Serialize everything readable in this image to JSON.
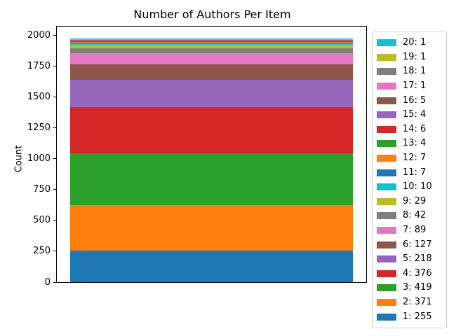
{
  "title": "Number of Authors Per Item",
  "axes": {
    "ylabel": "Count",
    "ytick_labels": [
      "0",
      "250",
      "500",
      "750",
      "1000",
      "1250",
      "1500",
      "1750",
      "2000"
    ]
  },
  "chart_data": {
    "type": "bar",
    "stacked": true,
    "orientation": "vertical",
    "title": "Number of Authors Per Item",
    "xlabel": "",
    "ylabel": "Count",
    "categories": [
      ""
    ],
    "ylim": [
      0,
      2072
    ],
    "yticks": [
      0,
      250,
      500,
      750,
      1000,
      1250,
      1500,
      1750,
      2000
    ],
    "grid": false,
    "legend_position": "outside upper right",
    "series": [
      {
        "name": "1",
        "values": [
          255
        ],
        "color": "#1f77b4"
      },
      {
        "name": "2",
        "values": [
          371
        ],
        "color": "#ff7f0e"
      },
      {
        "name": "3",
        "values": [
          419
        ],
        "color": "#2ca02c"
      },
      {
        "name": "4",
        "values": [
          376
        ],
        "color": "#d62728"
      },
      {
        "name": "5",
        "values": [
          218
        ],
        "color": "#9467bd"
      },
      {
        "name": "6",
        "values": [
          127
        ],
        "color": "#8c564b"
      },
      {
        "name": "7",
        "values": [
          89
        ],
        "color": "#e377c2"
      },
      {
        "name": "8",
        "values": [
          42
        ],
        "color": "#7f7f7f"
      },
      {
        "name": "9",
        "values": [
          29
        ],
        "color": "#bcbd22"
      },
      {
        "name": "10",
        "values": [
          10
        ],
        "color": "#17becf"
      },
      {
        "name": "11",
        "values": [
          7
        ],
        "color": "#1f77b4"
      },
      {
        "name": "12",
        "values": [
          7
        ],
        "color": "#ff7f0e"
      },
      {
        "name": "13",
        "values": [
          4
        ],
        "color": "#2ca02c"
      },
      {
        "name": "14",
        "values": [
          6
        ],
        "color": "#d62728"
      },
      {
        "name": "15",
        "values": [
          4
        ],
        "color": "#9467bd"
      },
      {
        "name": "16",
        "values": [
          5
        ],
        "color": "#8c564b"
      },
      {
        "name": "17",
        "values": [
          1
        ],
        "color": "#e377c2"
      },
      {
        "name": "18",
        "values": [
          1
        ],
        "color": "#7f7f7f"
      },
      {
        "name": "19",
        "values": [
          1
        ],
        "color": "#bcbd22"
      },
      {
        "name": "20",
        "values": [
          1
        ],
        "color": "#17becf"
      }
    ],
    "legend_entries": [
      {
        "label": "20: 1",
        "color": "#17becf"
      },
      {
        "label": "19: 1",
        "color": "#bcbd22"
      },
      {
        "label": "18: 1",
        "color": "#7f7f7f"
      },
      {
        "label": "17: 1",
        "color": "#e377c2"
      },
      {
        "label": "16: 5",
        "color": "#8c564b"
      },
      {
        "label": "15: 4",
        "color": "#9467bd"
      },
      {
        "label": "14: 6",
        "color": "#d62728"
      },
      {
        "label": "13: 4",
        "color": "#2ca02c"
      },
      {
        "label": "12: 7",
        "color": "#ff7f0e"
      },
      {
        "label": "11: 7",
        "color": "#1f77b4"
      },
      {
        "label": "10: 10",
        "color": "#17becf"
      },
      {
        "label": "9: 29",
        "color": "#bcbd22"
      },
      {
        "label": "8: 42",
        "color": "#7f7f7f"
      },
      {
        "label": "7: 89",
        "color": "#e377c2"
      },
      {
        "label": "6: 127",
        "color": "#8c564b"
      },
      {
        "label": "5: 218",
        "color": "#9467bd"
      },
      {
        "label": "4: 376",
        "color": "#d62728"
      },
      {
        "label": "3: 419",
        "color": "#2ca02c"
      },
      {
        "label": "2: 371",
        "color": "#ff7f0e"
      },
      {
        "label": "1: 255",
        "color": "#1f77b4"
      }
    ]
  },
  "colors": {
    "background": "#ffffff",
    "spine": "#000000",
    "text": "#000000",
    "legend_border": "#cccccc"
  }
}
